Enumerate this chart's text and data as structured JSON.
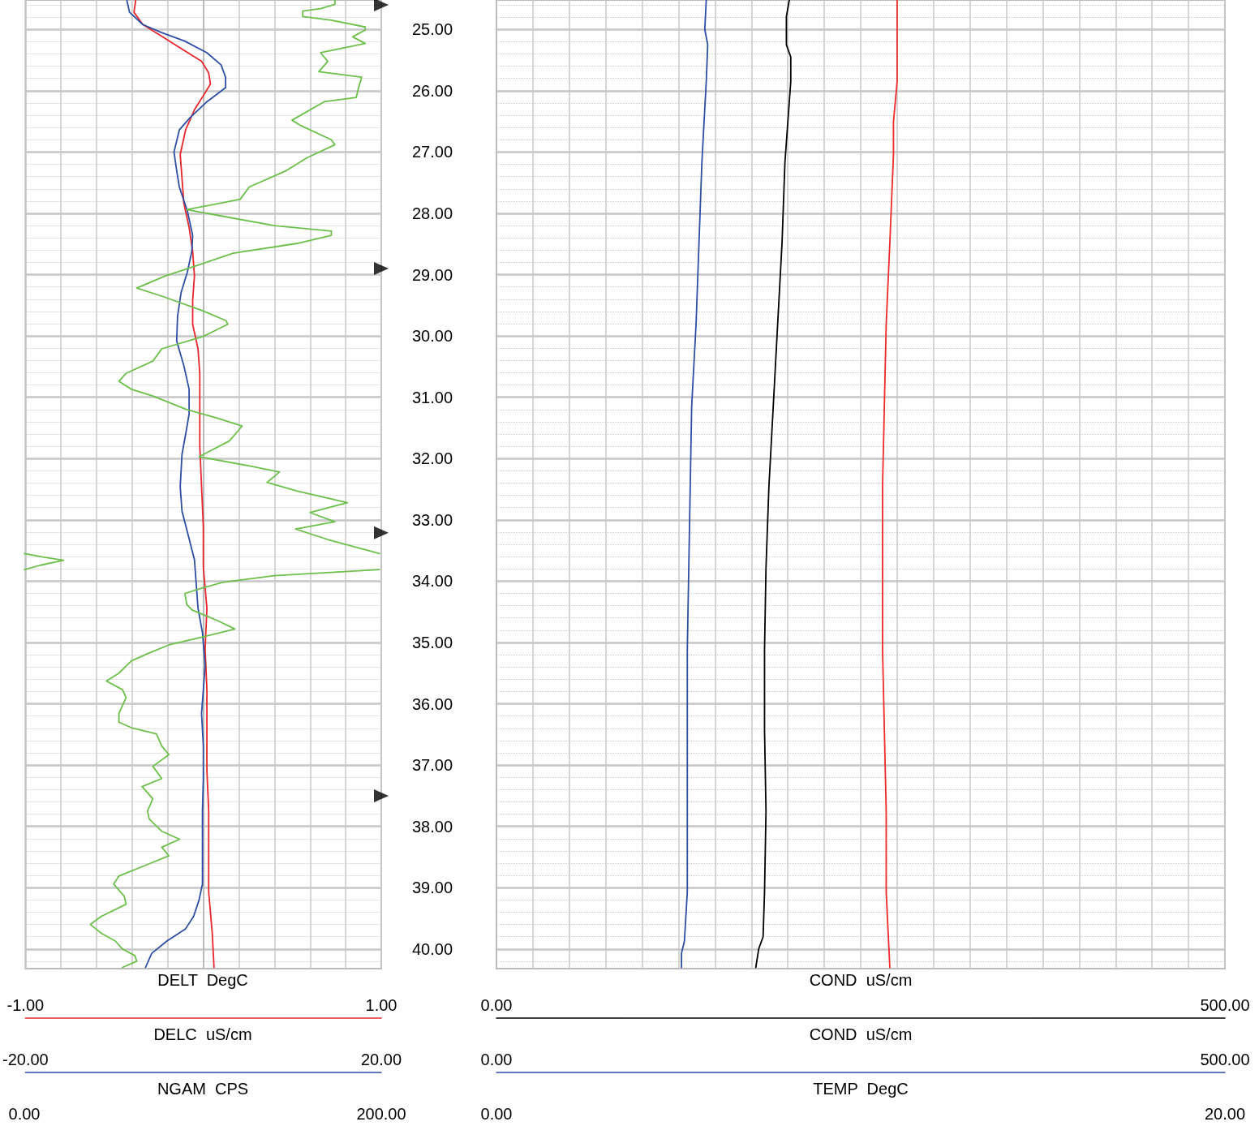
{
  "chart_data": [
    {
      "type": "line",
      "ylim": [
        40.32,
        24.52
      ],
      "yticks": [
        {
          "value": 25,
          "label": "25.00"
        },
        {
          "value": 26,
          "label": "26.00"
        },
        {
          "value": 27,
          "label": "27.00"
        },
        {
          "value": 28,
          "label": "28.00"
        },
        {
          "value": 29,
          "label": "29.00"
        },
        {
          "value": 30,
          "label": "30.00"
        },
        {
          "value": 31,
          "label": "31.00"
        },
        {
          "value": 32,
          "label": "32.00"
        },
        {
          "value": 33,
          "label": "33.00"
        },
        {
          "value": 34,
          "label": "34.00"
        },
        {
          "value": 35,
          "label": "35.00"
        },
        {
          "value": 36,
          "label": "36.00"
        },
        {
          "value": 37,
          "label": "37.00"
        },
        {
          "value": 38,
          "label": "38.00"
        },
        {
          "value": 39,
          "label": "39.00"
        },
        {
          "value": 40,
          "label": "40.00"
        }
      ],
      "xlabel": "DELT  DegC",
      "xlim": [
        -1,
        1
      ],
      "xticks": [
        {
          "value": -1,
          "label": "-1.00"
        },
        {
          "value": -0.8,
          "label": null
        },
        {
          "value": -0.6,
          "label": null
        },
        {
          "value": -0.4,
          "label": null
        },
        {
          "value": -0.2,
          "label": null
        },
        {
          "value": 0,
          "label": null
        },
        {
          "value": 0.2,
          "label": null
        },
        {
          "value": 0.4,
          "label": null
        },
        {
          "value": 0.6,
          "label": null
        },
        {
          "value": 0.8,
          "label": null
        },
        {
          "value": 1,
          "label": "1.00"
        }
      ],
      "x2label": "DELC  uS/cm",
      "x2lim": [
        -20,
        20
      ],
      "x2ticks": [
        {
          "value": -20,
          "label": "-20.00"
        },
        {
          "value": 20,
          "label": "20.00"
        }
      ],
      "grid": true,
      "series": [
        {
          "color": "#e8262b",
          "x": [
            -0.38,
            -0.39,
            -0.34,
            -0.23,
            -0.12,
            -0.01,
            0.03,
            0.04,
            0.0,
            -0.05,
            -0.1,
            -0.13,
            -0.12,
            -0.11,
            -0.08,
            -0.06,
            -0.05,
            -0.06,
            -0.06,
            -0.03,
            -0.02,
            -0.02,
            -0.02,
            -0.01,
            0.0,
            0.0,
            0.02,
            0.01,
            0.02,
            0.02,
            0.02,
            0.03,
            0.03,
            0.03,
            0.05,
            0.06
          ],
          "values": [
            24.52,
            24.72,
            24.92,
            25.12,
            25.32,
            25.52,
            25.71,
            25.89,
            26.08,
            26.31,
            26.64,
            27.04,
            27.43,
            27.83,
            28.23,
            28.62,
            29.02,
            29.42,
            29.81,
            30.21,
            30.61,
            31.14,
            31.8,
            32.46,
            33.12,
            33.78,
            34.44,
            35.11,
            35.77,
            36.43,
            37.09,
            37.75,
            38.41,
            39.07,
            39.74,
            40.3
          ]
        },
        {
          "axis": "x2",
          "color": "#2c4fa3",
          "x": [
            -8.6,
            -8.3,
            -6.8,
            -4.7,
            -2.1,
            0.4,
            2.0,
            2.5,
            2.5,
            0.4,
            -1.5,
            -2.7,
            -3.3,
            -3.0,
            -2.7,
            -1.8,
            -1.2,
            -1.3,
            -1.8,
            -2.5,
            -2.9,
            -3.0,
            -2.2,
            -1.6,
            -1.6,
            -1.9,
            -2.4,
            -2.6,
            -2.4,
            -1.7,
            -1.0,
            -0.8,
            -0.6,
            -0.1,
            0.2,
            0.0,
            -0.2,
            0.0,
            0.0,
            -0.1,
            -0.1,
            -0.1,
            -0.5,
            -1.1,
            -2.0,
            -4.1,
            -5.8,
            -6.5
          ],
          "values": [
            24.52,
            24.72,
            24.92,
            25.05,
            25.19,
            25.38,
            25.58,
            25.78,
            25.95,
            26.18,
            26.44,
            26.64,
            27.0,
            27.3,
            27.57,
            27.96,
            28.36,
            28.62,
            28.96,
            29.29,
            29.68,
            30.08,
            30.48,
            30.87,
            31.27,
            31.53,
            31.93,
            32.46,
            32.86,
            33.25,
            33.65,
            34.05,
            34.44,
            34.84,
            35.37,
            35.77,
            36.16,
            36.69,
            37.22,
            37.75,
            38.41,
            38.94,
            39.21,
            39.47,
            39.67,
            39.87,
            40.07,
            40.3
          ]
        },
        {
          "type": "scatter",
          "axis": "x2",
          "marker": "triangle",
          "color": "#000000",
          "x": [
            20,
            20,
            20,
            20
          ],
          "values": [
            24.6,
            28.9,
            33.21,
            37.5
          ]
        }
      ]
    },
    {
      "type": "line",
      "ylim": [
        40.32,
        24.52
      ],
      "tick_labels": "x",
      "xlabel": "NGAM  CPS",
      "xlim": [
        0,
        200
      ],
      "xticks": [
        {
          "value": 0,
          "label": "0.00"
        },
        {
          "value": 200,
          "label": "200.00"
        }
      ],
      "series": [
        {
          "color": "#6cc04a",
          "x": [
            174,
            174,
            166,
            156,
            156,
            172,
            191,
            191,
            184,
            191,
            166,
            170,
            165,
            189,
            187,
            186,
            168,
            150,
            155,
            172,
            174,
            158,
            147,
            126,
            121,
            91,
            108,
            140,
            172,
            172,
            153,
            117,
            100,
            79,
            63,
            77,
            100,
            113,
            114,
            100,
            77,
            72,
            57,
            53,
            60,
            72,
            91,
            108,
            122,
            115,
            98,
            128,
            143,
            136,
            153,
            181,
            160,
            174,
            152,
            170,
            199,
            null,
            199,
            140,
            111,
            100,
            90,
            91,
            94,
            108,
            118,
            100,
            81,
            70,
            60,
            53,
            46,
            55,
            57,
            53,
            53,
            60,
            74,
            77,
            81,
            72,
            77,
            66,
            72,
            69,
            70,
            77,
            87,
            77,
            81,
            70,
            53,
            50,
            56,
            57,
            43,
            37,
            43,
            51,
            55,
            62,
            63,
            55
          ],
          "values": [
            24.52,
            24.59,
            24.66,
            24.7,
            24.79,
            24.85,
            24.96,
            25.01,
            25.12,
            25.23,
            25.38,
            25.52,
            25.69,
            25.78,
            25.98,
            26.11,
            26.18,
            26.48,
            26.57,
            26.8,
            26.88,
            27.1,
            27.3,
            27.57,
            27.77,
            27.94,
            28.03,
            28.2,
            28.29,
            28.36,
            28.49,
            28.65,
            28.82,
            29.02,
            29.22,
            29.35,
            29.59,
            29.75,
            29.81,
            30.01,
            30.21,
            30.41,
            30.61,
            30.74,
            30.87,
            30.98,
            31.2,
            31.34,
            31.47,
            31.71,
            31.97,
            32.13,
            32.22,
            32.39,
            32.53,
            32.72,
            32.88,
            33.03,
            33.15,
            33.32,
            33.55,
            null,
            33.81,
            33.91,
            34.02,
            34.11,
            34.2,
            34.38,
            34.47,
            34.64,
            34.78,
            34.91,
            35.04,
            35.17,
            35.3,
            35.5,
            35.63,
            35.77,
            35.9,
            36.16,
            36.3,
            36.39,
            36.49,
            36.69,
            36.83,
            37.02,
            37.22,
            37.35,
            37.55,
            37.75,
            37.88,
            38.08,
            38.21,
            38.34,
            38.48,
            38.61,
            38.81,
            38.94,
            39.14,
            39.27,
            39.47,
            39.6,
            39.74,
            39.87,
            40.0,
            40.11,
            40.2,
            40.3
          ]
        },
        {
          "color": "#6cc04a",
          "x": [
            0,
            11,
            22,
            9,
            0
          ],
          "values": [
            33.55,
            33.61,
            33.66,
            33.74,
            33.81
          ]
        }
      ]
    },
    {
      "type": "line",
      "ylim": [
        40.32,
        24.52
      ],
      "yticks": [
        25,
        26,
        27,
        28,
        29,
        30,
        31,
        32,
        33,
        34,
        35,
        36,
        37,
        38,
        39,
        40
      ],
      "tick_labels": "x",
      "xlabel": "COND  uS/cm",
      "xlim": [
        0,
        500
      ],
      "xticks": [
        {
          "value": 0,
          "label": "0.00"
        },
        {
          "value": 25,
          "label": null
        },
        {
          "value": 50,
          "label": null
        },
        {
          "value": 75,
          "label": null
        },
        {
          "value": 100,
          "label": null
        },
        {
          "value": 125,
          "label": null
        },
        {
          "value": 150,
          "label": null
        },
        {
          "value": 175,
          "label": null
        },
        {
          "value": 200,
          "label": null
        },
        {
          "value": 225,
          "label": null
        },
        {
          "value": 250,
          "label": null
        },
        {
          "value": 275,
          "label": null
        },
        {
          "value": 300,
          "label": null
        },
        {
          "value": 325,
          "label": null
        },
        {
          "value": 350,
          "label": null
        },
        {
          "value": 375,
          "label": null
        },
        {
          "value": 400,
          "label": null
        },
        {
          "value": 425,
          "label": null
        },
        {
          "value": 450,
          "label": null
        },
        {
          "value": 475,
          "label": null
        },
        {
          "value": 500,
          "label": "500.00"
        }
      ],
      "x2label": "COND  uS/cm",
      "x2lim": [
        0,
        500
      ],
      "x2ticks": [
        {
          "value": 0,
          "label": "0.00"
        },
        {
          "value": 500,
          "label": "500.00"
        }
      ],
      "grid": true,
      "series": [
        {
          "color": "#000000",
          "x": [
            201,
            199,
            199,
            199,
            202,
            202,
            198,
            196,
            193,
            190,
            187,
            185,
            184,
            184,
            185,
            184,
            183,
            180,
            178
          ],
          "values": [
            24.52,
            24.79,
            25.0,
            25.25,
            25.45,
            25.85,
            27.17,
            28.49,
            29.81,
            31.14,
            32.46,
            33.78,
            35.11,
            36.43,
            37.75,
            39.07,
            39.8,
            40.0,
            40.3
          ]
        },
        {
          "axis": "x2",
          "color": "#2c4fa3",
          "x": [
            144,
            143,
            145,
            144,
            141,
            139,
            137,
            134,
            133,
            132,
            131,
            131,
            131,
            131,
            129,
            127,
            127
          ],
          "values": [
            24.52,
            25.0,
            25.25,
            25.85,
            27.17,
            28.49,
            29.81,
            31.14,
            32.46,
            33.78,
            35.11,
            36.43,
            37.75,
            39.07,
            39.87,
            40.07,
            40.3
          ]
        }
      ]
    },
    {
      "type": "line",
      "ylim": [
        40.32,
        24.52
      ],
      "tick_labels": "x",
      "xlabel": "TEMP  DegC",
      "xlim": [
        0,
        20
      ],
      "xticks": [
        {
          "value": 0,
          "label": "0.00"
        },
        {
          "value": 20,
          "label": "20.00"
        }
      ],
      "series": [
        {
          "color": "#ee2a2a",
          "x": [
            11.0,
            11.0,
            11.0,
            10.9,
            10.9,
            10.8,
            10.7,
            10.6,
            10.6,
            10.7,
            10.7,
            10.8
          ],
          "values": [
            24.52,
            25.19,
            25.85,
            26.51,
            27.04,
            28.49,
            29.81,
            32.46,
            35.11,
            37.75,
            39.07,
            40.3
          ]
        }
      ]
    }
  ]
}
